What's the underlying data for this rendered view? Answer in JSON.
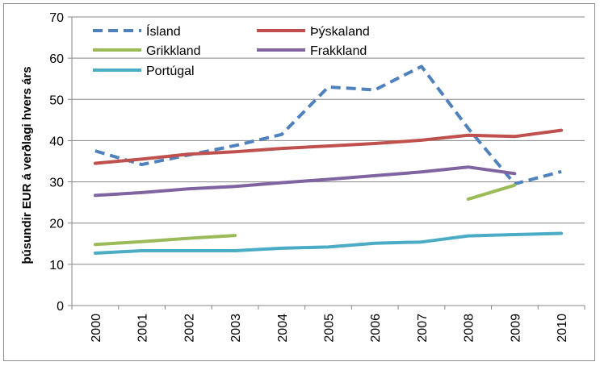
{
  "chart_data": {
    "type": "line",
    "title": "",
    "xlabel": "",
    "ylabel": "þúsundir EUR á verðlagi hvers árs",
    "ylim": [
      0,
      70
    ],
    "y_ticks": [
      0,
      10,
      20,
      30,
      40,
      50,
      60,
      70
    ],
    "grid": "horizontal",
    "legend_position": "top-left, inside plot",
    "x": [
      "2000",
      "2001",
      "2002",
      "2003",
      "2004",
      "2005",
      "2006",
      "2007",
      "2008",
      "2009",
      "2010"
    ],
    "series": [
      {
        "name": "Ísland",
        "color": "#4f81bd",
        "dash": true,
        "values": [
          37.5,
          34.2,
          36.5,
          38.8,
          41.5,
          53.0,
          52.3,
          58.0,
          43.0,
          29.5,
          32.5
        ]
      },
      {
        "name": "Þýskaland",
        "color": "#c0504d",
        "dash": false,
        "values": [
          34.5,
          35.5,
          36.7,
          37.3,
          38.1,
          38.7,
          39.3,
          40.1,
          41.3,
          41.0,
          42.5
        ]
      },
      {
        "name": "Grikkland",
        "color": "#9bbb59",
        "dash": false,
        "values": [
          14.8,
          15.5,
          16.3,
          17.0,
          null,
          null,
          null,
          null,
          25.8,
          29.2,
          null
        ]
      },
      {
        "name": "Frakkland",
        "color": "#8064a2",
        "dash": false,
        "values": [
          26.7,
          27.4,
          28.3,
          28.9,
          29.8,
          30.6,
          31.5,
          32.4,
          33.6,
          32.0,
          null
        ]
      },
      {
        "name": "Portúgal",
        "color": "#4bacc6",
        "dash": false,
        "values": [
          12.7,
          13.3,
          13.3,
          13.3,
          13.9,
          14.2,
          15.1,
          15.4,
          16.9,
          17.2,
          17.5
        ]
      }
    ]
  }
}
